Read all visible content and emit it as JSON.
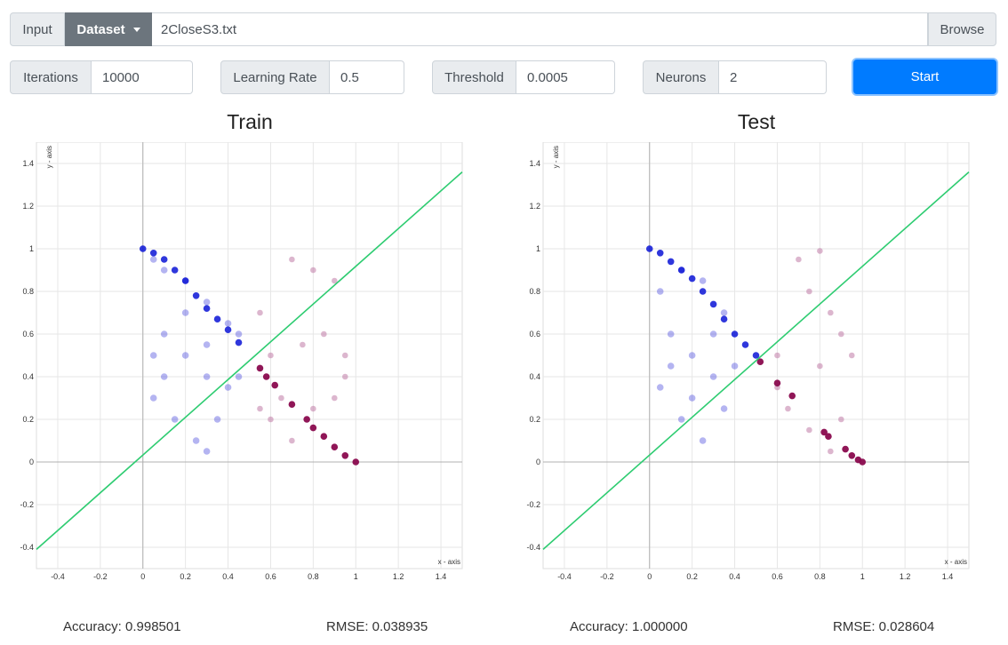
{
  "toolbar": {
    "input_label": "Input",
    "dataset_label": "Dataset",
    "file_name": "2CloseS3.txt",
    "browse_label": "Browse"
  },
  "params": {
    "iterations_label": "Iterations",
    "iterations_value": "10000",
    "learning_rate_label": "Learning Rate",
    "learning_rate_value": "0.5",
    "threshold_label": "Threshold",
    "threshold_value": "0.0005",
    "neurons_label": "Neurons",
    "neurons_value": "2",
    "start_label": "Start"
  },
  "train": {
    "title": "Train",
    "accuracy": "Accuracy: 0.998501",
    "rmse": "RMSE: 0.038935"
  },
  "test": {
    "title": "Test",
    "accuracy": "Accuracy: 1.000000",
    "rmse": "RMSE: 0.028604"
  },
  "colors": {
    "class_a": "#3b3bd9",
    "class_a_dark": "#0a14d6",
    "class_b": "#c07aa6",
    "class_b_dark": "#8a0a4e",
    "boundary": "#2ecc71"
  },
  "chart_data": [
    {
      "type": "scatter",
      "title": "Train",
      "xlabel": "x - axis",
      "ylabel": "y - axis",
      "xlim": [
        -0.5,
        1.5
      ],
      "ylim": [
        -0.5,
        1.5
      ],
      "xticks": [
        "-0.4",
        "-0.2",
        "0",
        "0.2",
        "0.4",
        "0.6",
        "0.8",
        "1",
        "1.2",
        "1.4"
      ],
      "yticks": [
        "-0.4",
        "-0.2",
        "0",
        "0.2",
        "0.4",
        "0.6",
        "0.8",
        "1",
        "1.2",
        "1.4"
      ],
      "grid": true,
      "boundary_line": {
        "x": [
          -0.5,
          1.5
        ],
        "y": [
          -0.41,
          1.36
        ]
      },
      "series": [
        {
          "class": "A",
          "points": [
            [
              0.05,
              0.95
            ],
            [
              0.1,
              0.9
            ],
            [
              0.2,
              0.85
            ],
            [
              0.3,
              0.75
            ],
            [
              0.4,
              0.65
            ],
            [
              0.45,
              0.6
            ],
            [
              0.1,
              0.6
            ],
            [
              0.2,
              0.5
            ],
            [
              0.3,
              0.4
            ],
            [
              0.05,
              0.3
            ],
            [
              0.15,
              0.2
            ],
            [
              0.25,
              0.1
            ],
            [
              0.35,
              0.2
            ],
            [
              0.4,
              0.35
            ],
            [
              0.05,
              0.5
            ],
            [
              0.3,
              0.55
            ],
            [
              0.2,
              0.7
            ],
            [
              0.1,
              0.4
            ],
            [
              0.3,
              0.05
            ],
            [
              0.45,
              0.4
            ]
          ]
        },
        {
          "class": "A-arc",
          "points": [
            [
              0,
              1
            ],
            [
              0.05,
              0.98
            ],
            [
              0.1,
              0.95
            ],
            [
              0.15,
              0.9
            ],
            [
              0.2,
              0.85
            ],
            [
              0.25,
              0.78
            ],
            [
              0.3,
              0.72
            ],
            [
              0.35,
              0.67
            ],
            [
              0.4,
              0.62
            ],
            [
              0.45,
              0.56
            ]
          ]
        },
        {
          "class": "B",
          "points": [
            [
              0.55,
              0.7
            ],
            [
              0.7,
              0.95
            ],
            [
              0.8,
              0.9
            ],
            [
              0.9,
              0.85
            ],
            [
              0.6,
              0.5
            ],
            [
              0.75,
              0.55
            ],
            [
              0.85,
              0.6
            ],
            [
              0.95,
              0.4
            ],
            [
              0.6,
              0.2
            ],
            [
              0.7,
              0.1
            ],
            [
              0.8,
              0.25
            ],
            [
              0.9,
              0.3
            ],
            [
              0.65,
              0.3
            ],
            [
              0.55,
              0.25
            ],
            [
              0.95,
              0.5
            ]
          ]
        },
        {
          "class": "B-arc",
          "points": [
            [
              0.55,
              0.44
            ],
            [
              0.58,
              0.4
            ],
            [
              0.62,
              0.36
            ],
            [
              0.7,
              0.27
            ],
            [
              0.77,
              0.2
            ],
            [
              0.8,
              0.16
            ],
            [
              0.85,
              0.12
            ],
            [
              0.9,
              0.07
            ],
            [
              0.95,
              0.03
            ],
            [
              1,
              0
            ]
          ]
        }
      ]
    },
    {
      "type": "scatter",
      "title": "Test",
      "xlabel": "x - axis",
      "ylabel": "y - axis",
      "xlim": [
        -0.5,
        1.5
      ],
      "ylim": [
        -0.5,
        1.5
      ],
      "xticks": [
        "-0.4",
        "-0.2",
        "0",
        "0.2",
        "0.4",
        "0.6",
        "0.8",
        "1",
        "1.2",
        "1.4"
      ],
      "yticks": [
        "-0.4",
        "-0.2",
        "0",
        "0.2",
        "0.4",
        "0.6",
        "0.8",
        "1",
        "1.2",
        "1.4"
      ],
      "grid": true,
      "boundary_line": {
        "x": [
          -0.5,
          1.5
        ],
        "y": [
          -0.41,
          1.36
        ]
      },
      "series": [
        {
          "class": "A",
          "points": [
            [
              0.05,
              0.8
            ],
            [
              0.15,
              0.9
            ],
            [
              0.25,
              0.85
            ],
            [
              0.35,
              0.7
            ],
            [
              0.1,
              0.6
            ],
            [
              0.2,
              0.5
            ],
            [
              0.3,
              0.4
            ],
            [
              0.05,
              0.35
            ],
            [
              0.15,
              0.2
            ],
            [
              0.25,
              0.1
            ],
            [
              0.35,
              0.25
            ],
            [
              0.4,
              0.45
            ],
            [
              0.1,
              0.45
            ],
            [
              0.3,
              0.6
            ],
            [
              0.2,
              0.3
            ]
          ]
        },
        {
          "class": "A-arc",
          "points": [
            [
              0,
              1
            ],
            [
              0.05,
              0.98
            ],
            [
              0.1,
              0.94
            ],
            [
              0.15,
              0.9
            ],
            [
              0.2,
              0.86
            ],
            [
              0.25,
              0.8
            ],
            [
              0.3,
              0.74
            ],
            [
              0.35,
              0.67
            ],
            [
              0.4,
              0.6
            ],
            [
              0.45,
              0.55
            ],
            [
              0.5,
              0.5
            ]
          ]
        },
        {
          "class": "B",
          "points": [
            [
              0.6,
              0.35
            ],
            [
              0.7,
              0.95
            ],
            [
              0.8,
              0.99
            ],
            [
              0.75,
              0.8
            ],
            [
              0.85,
              0.7
            ],
            [
              0.9,
              0.6
            ],
            [
              0.95,
              0.5
            ],
            [
              0.8,
              0.45
            ],
            [
              0.65,
              0.25
            ],
            [
              0.75,
              0.15
            ],
            [
              0.9,
              0.2
            ],
            [
              0.85,
              0.05
            ],
            [
              0.6,
              0.5
            ]
          ]
        },
        {
          "class": "B-arc",
          "points": [
            [
              0.52,
              0.47
            ],
            [
              0.6,
              0.37
            ],
            [
              0.67,
              0.31
            ],
            [
              0.82,
              0.14
            ],
            [
              0.84,
              0.12
            ],
            [
              0.92,
              0.06
            ],
            [
              0.95,
              0.03
            ],
            [
              0.98,
              0.01
            ],
            [
              1,
              0
            ]
          ]
        }
      ]
    }
  ]
}
